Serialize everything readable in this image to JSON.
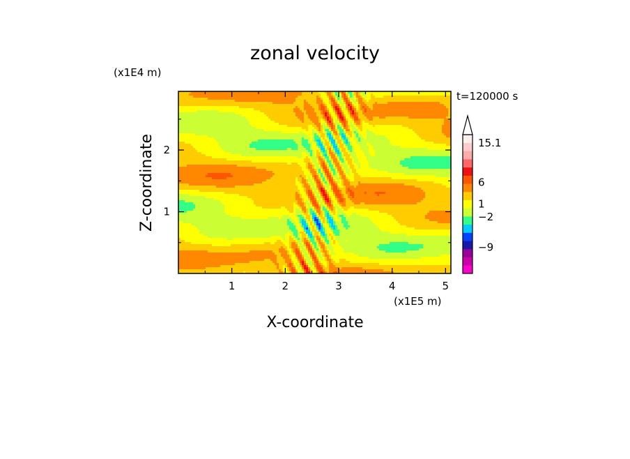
{
  "chart_data": {
    "type": "heatmap",
    "title": "zonal velocity",
    "xlabel": "X-coordinate",
    "ylabel": "Z-coordinate",
    "x_unit": "(x1E5 m)",
    "y_unit": "(x1E4 m)",
    "time_label": "t=120000 s",
    "xlim": [
      0,
      5.1
    ],
    "ylim": [
      0,
      2.95
    ],
    "x_ticks": [
      1,
      2,
      3,
      4,
      5
    ],
    "y_ticks": [
      1,
      2
    ],
    "colorbar": {
      "labels": [
        "15.1",
        "6",
        "1",
        "−2",
        "−9"
      ],
      "label_values": [
        15.1,
        6,
        1,
        -2,
        -9
      ],
      "colors": [
        "#ff00cc",
        "#cc00aa",
        "#990099",
        "#1a1aaa",
        "#0044ff",
        "#00ccff",
        "#33ff88",
        "#ccff33",
        "#ffff00",
        "#ffcc00",
        "#ff8800",
        "#ff5500",
        "#ee1111",
        "#ff6666",
        "#ffaaaa",
        "#ffcccc",
        "#ffeeee"
      ],
      "extend": "max"
    }
  }
}
